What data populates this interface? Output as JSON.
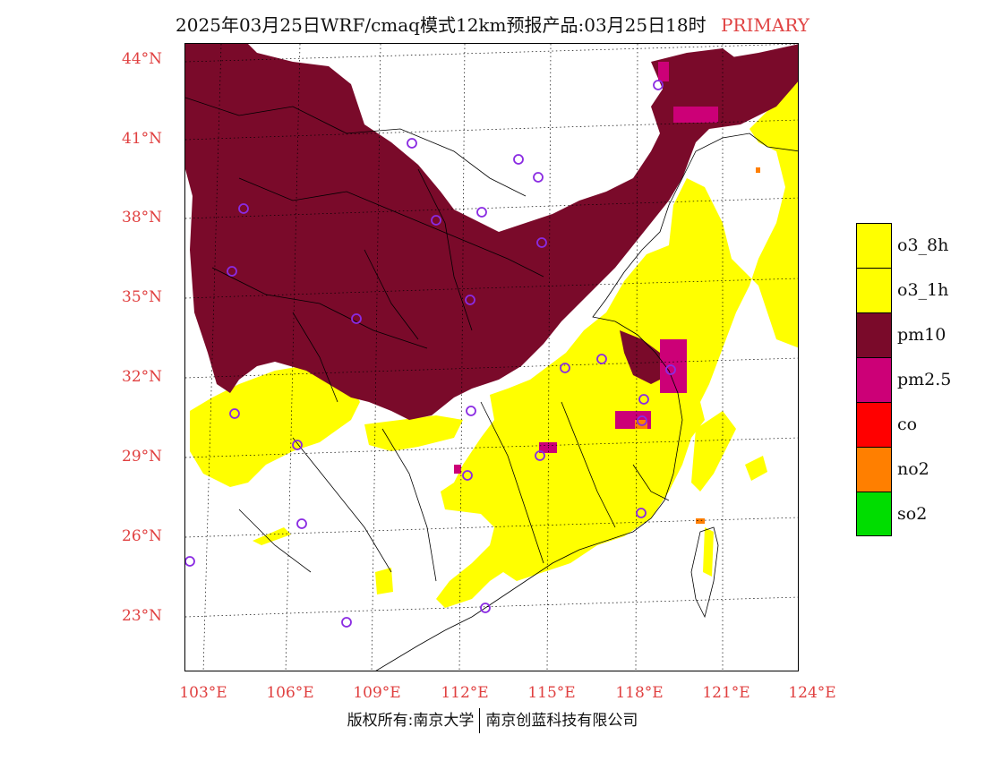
{
  "title": {
    "main": "2025年03月25日WRF/cmaq模式12km预报产品:03月25日18时",
    "mode": "PRIMARY"
  },
  "axes": {
    "lat_labels": [
      "44°N",
      "41°N",
      "38°N",
      "35°N",
      "32°N",
      "29°N",
      "26°N",
      "23°N"
    ],
    "lon_labels": [
      "103°E",
      "106°E",
      "109°E",
      "112°E",
      "115°E",
      "118°E",
      "121°E",
      "124°E"
    ]
  },
  "legend": [
    {
      "label": "o3_8h",
      "color": "#ffff00"
    },
    {
      "label": "o3_1h",
      "color": "#ffff00"
    },
    {
      "label": "pm10",
      "color": "#7a0a2a"
    },
    {
      "label": "pm2.5",
      "color": "#cc0077"
    },
    {
      "label": "co",
      "color": "#ff0000"
    },
    {
      "label": "no2",
      "color": "#ff7f00"
    },
    {
      "label": "so2",
      "color": "#00dd00"
    }
  ],
  "credit": {
    "left": "版权所有:南京大学",
    "right": "南京创蓝科技有限公司"
  },
  "colors": {
    "pm10": "#7a0a2a",
    "pm25": "#cc0077",
    "o3": "#ffff00",
    "no2": "#ff7f00",
    "station": "#8a2be2",
    "axis_label": "#e04040"
  }
}
